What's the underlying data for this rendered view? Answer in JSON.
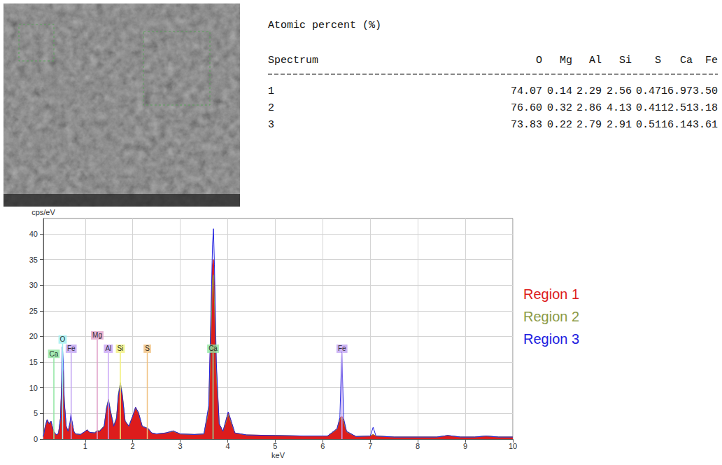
{
  "table": {
    "title": "Atomic percent (%)",
    "header": [
      "Spectrum",
      "O",
      "Mg",
      "Al",
      "Si",
      "S",
      "Ca",
      "Fe"
    ],
    "rows": [
      [
        "1",
        "74.07",
        "0.14",
        "2.29",
        "2.56",
        "0.47",
        "16.97",
        "3.50"
      ],
      [
        "2",
        "76.60",
        "0.32",
        "2.86",
        "4.13",
        "0.41",
        "12.51",
        "3.18"
      ],
      [
        "3",
        "73.83",
        "0.22",
        "2.79",
        "2.91",
        "0.51",
        "16.14",
        "3.61"
      ]
    ]
  },
  "chart_data": {
    "type": "line",
    "x_label": "keV",
    "y_label": "cps/eV",
    "x": [
      0.12,
      0.16,
      0.2,
      0.24,
      0.28,
      0.32,
      0.36,
      0.4,
      0.44,
      0.48,
      0.5,
      0.52,
      0.54,
      0.56,
      0.6,
      0.64,
      0.68,
      0.7,
      0.72,
      0.76,
      0.8,
      0.9,
      1.0,
      1.04,
      1.1,
      1.2,
      1.25,
      1.3,
      1.4,
      1.45,
      1.49,
      1.53,
      1.6,
      1.66,
      1.7,
      1.74,
      1.78,
      1.84,
      1.92,
      2.0,
      2.06,
      2.12,
      2.2,
      2.28,
      2.32,
      2.4,
      2.5,
      2.7,
      2.85,
      3.0,
      3.3,
      3.5,
      3.6,
      3.64,
      3.68,
      3.7,
      3.72,
      3.76,
      3.82,
      3.9,
      3.96,
      4.01,
      4.06,
      4.15,
      4.4,
      5.0,
      5.6,
      6.1,
      6.3,
      6.36,
      6.4,
      6.44,
      6.5,
      6.7,
      7.0,
      7.06,
      7.12,
      7.5,
      8.0,
      8.4,
      8.63,
      8.9,
      9.2,
      9.44,
      9.7,
      10.0
    ],
    "series": [
      {
        "name": "Region 1",
        "color": "#dd1c1c",
        "type": "area",
        "values": [
          0.5,
          2.5,
          3.8,
          3.0,
          3.5,
          2.0,
          1.2,
          0.8,
          1.2,
          4,
          9,
          14,
          13,
          7,
          2.5,
          1.5,
          3.0,
          4.5,
          3.5,
          1.5,
          1.0,
          0.9,
          1.5,
          1.8,
          1.3,
          1.2,
          1.6,
          1.5,
          2.5,
          6.0,
          7.5,
          5.5,
          2.5,
          4.0,
          8.5,
          10.4,
          8.5,
          3.5,
          2.5,
          4.5,
          6.2,
          5.2,
          2.5,
          2.2,
          2.1,
          1.2,
          1.0,
          1.2,
          1.6,
          1.0,
          0.9,
          1.0,
          6,
          20,
          34,
          35,
          30,
          14,
          3,
          1.5,
          3.5,
          5.2,
          3.8,
          1.2,
          0.8,
          0.7,
          0.6,
          0.6,
          2.0,
          4.0,
          4.5,
          3.6,
          1.5,
          0.5,
          0.6,
          0.9,
          0.6,
          0.4,
          0.4,
          0.4,
          0.7,
          0.4,
          0.4,
          0.6,
          0.4,
          0.4
        ]
      },
      {
        "name": "Region 2",
        "color": "#8b9a46",
        "type": "line",
        "values": [
          0.5,
          2.5,
          3.8,
          3.0,
          3.5,
          2.0,
          1.2,
          0.8,
          1.2,
          4,
          9,
          13,
          12.5,
          7,
          2.5,
          1.5,
          3.0,
          4.3,
          3.4,
          1.5,
          1.0,
          0.9,
          1.5,
          1.8,
          1.3,
          1.2,
          1.7,
          1.6,
          2.6,
          6.2,
          7.8,
          5.7,
          2.6,
          4.3,
          9.0,
          11.0,
          9.0,
          3.6,
          2.5,
          4.5,
          6.1,
          5.1,
          2.5,
          2.2,
          2.0,
          1.2,
          1.0,
          1.2,
          1.5,
          1.0,
          0.9,
          1.0,
          5.5,
          18,
          31,
          32,
          27,
          13,
          3,
          1.5,
          3.2,
          4.8,
          3.5,
          1.2,
          0.8,
          0.7,
          0.6,
          0.6,
          1.9,
          3.8,
          4.2,
          3.4,
          1.4,
          0.5,
          0.6,
          0.9,
          0.6,
          0.4,
          0.4,
          0.4,
          0.7,
          0.4,
          0.4,
          0.6,
          0.4,
          0.4
        ]
      },
      {
        "name": "Region 3",
        "color": "#2020e0",
        "type": "line",
        "values": [
          0.5,
          2.5,
          3.8,
          3.0,
          3.5,
          2.0,
          1.2,
          0.8,
          1.2,
          4,
          10,
          18,
          15,
          7.5,
          2.5,
          1.5,
          3.2,
          5.0,
          3.6,
          1.5,
          1.0,
          0.9,
          1.5,
          1.8,
          1.3,
          1.2,
          1.6,
          1.5,
          2.5,
          6.0,
          7.6,
          5.5,
          2.5,
          4.0,
          8.6,
          10.5,
          8.6,
          3.5,
          2.5,
          4.5,
          6.2,
          5.2,
          2.5,
          2.2,
          2.1,
          1.2,
          1.0,
          1.2,
          1.6,
          1.0,
          0.9,
          1.0,
          6.5,
          22,
          38,
          41,
          34,
          15,
          3,
          1.5,
          3.6,
          5.3,
          3.9,
          1.2,
          0.8,
          0.7,
          0.6,
          0.6,
          2.0,
          4.2,
          17,
          4.0,
          1.5,
          0.5,
          0.6,
          2.3,
          0.6,
          0.4,
          0.4,
          0.4,
          0.7,
          0.4,
          0.4,
          0.6,
          0.4,
          0.4
        ]
      }
    ],
    "markers": [
      {
        "label": "Ca",
        "x": 0.341,
        "y": 15.8,
        "color": "#8ee6a0"
      },
      {
        "label": "O",
        "x": 0.525,
        "y": 18.6,
        "color": "#9eeef0"
      },
      {
        "label": "Fe",
        "x": 0.705,
        "y": 16.8,
        "color": "#c0a2f2"
      },
      {
        "label": "Mg",
        "x": 1.254,
        "y": 19.4,
        "color": "#e0a0c8"
      },
      {
        "label": "Al",
        "x": 1.487,
        "y": 16.8,
        "color": "#c8a4f6"
      },
      {
        "label": "Si",
        "x": 1.74,
        "y": 16.8,
        "color": "#f2f07a"
      },
      {
        "label": "S",
        "x": 2.307,
        "y": 16.8,
        "color": "#f0c07e"
      },
      {
        "label": "Ca",
        "x": 3.691,
        "y": 16.8,
        "color": "#8ee6a0"
      },
      {
        "label": "Fe",
        "x": 6.404,
        "y": 16.8,
        "color": "#c0a2f2"
      }
    ],
    "xlim": [
      0.12,
      10
    ],
    "xticks": [
      1,
      2,
      3,
      4,
      5,
      6,
      7,
      8,
      9,
      10
    ],
    "ylim": [
      0,
      43
    ],
    "yticks": [
      0,
      5,
      10,
      15,
      20,
      25,
      30,
      35,
      40
    ],
    "grid": true,
    "legend": "right"
  }
}
